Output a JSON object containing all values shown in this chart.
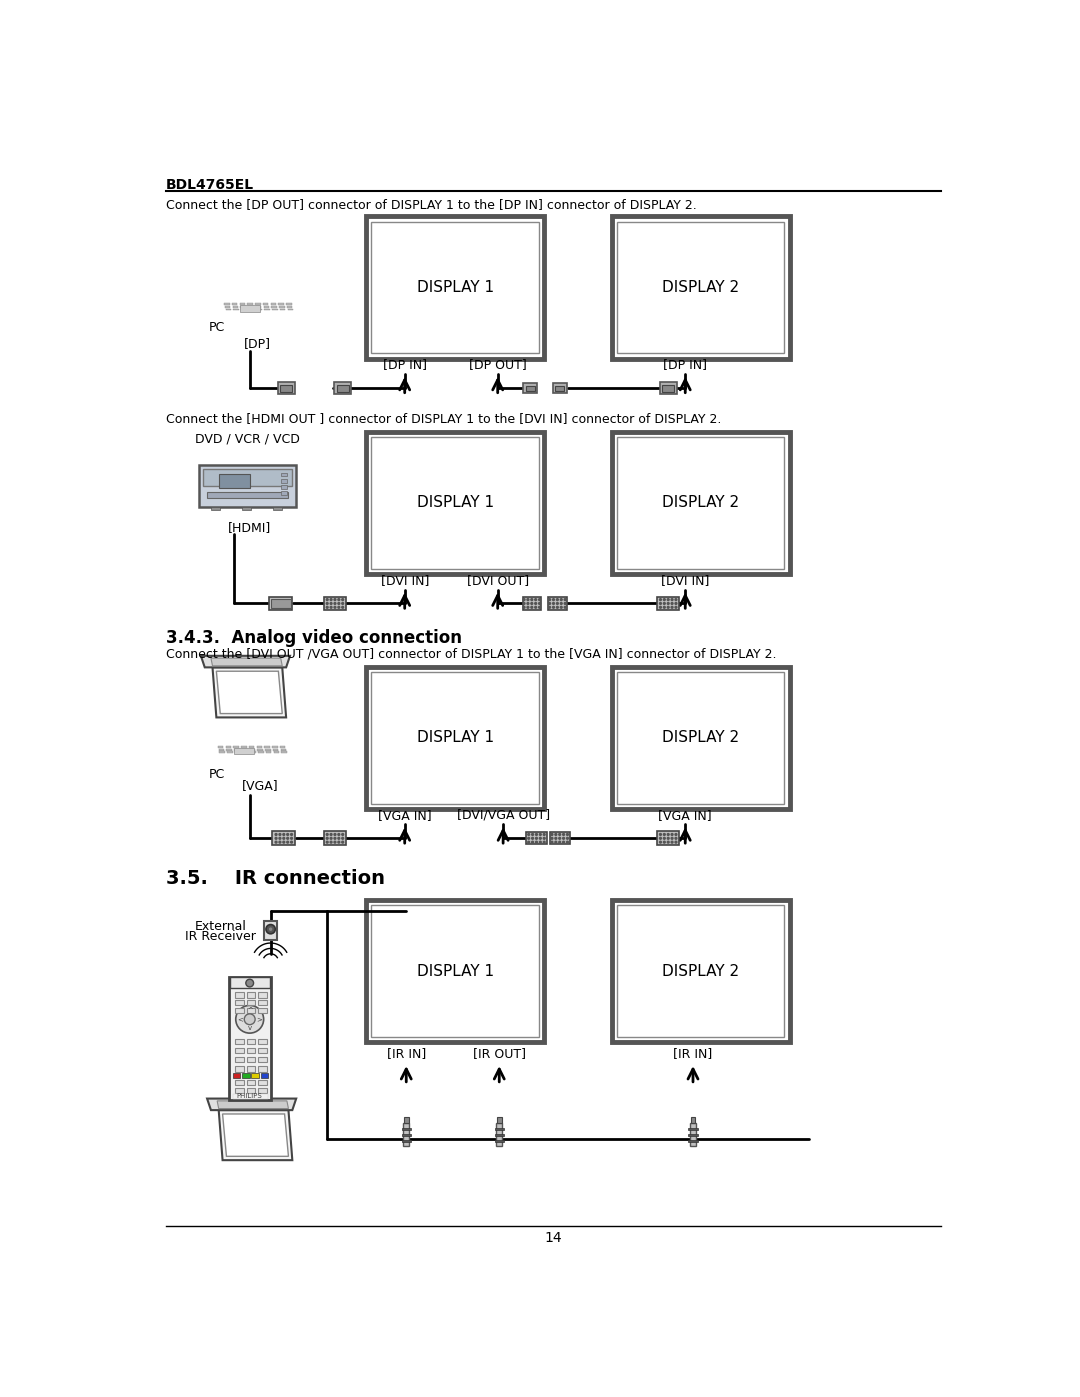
{
  "bg_color": "#ffffff",
  "text_color": "#000000",
  "page_title": "BDL4765EL",
  "page_number": "14",
  "section_343_title": "3.4.3.  Analog video connection",
  "section_35_title": "3.5.    IR connection",
  "dp_caption": "Connect the [DP OUT] connector of DISPLAY 1 to the [DP IN] connector of DISPLAY 2.",
  "hdmi_caption": "Connect the [HDMI OUT ] connector of DISPLAY 1 to the [DVI IN] connector of DISPLAY 2.",
  "vga_caption": "Connect the [DVI OUT /VGA OUT] connector of DISPLAY 1 to the [VGA IN] connector of DISPLAY 2.",
  "line_color": "#000000",
  "box_color": "#ffffff",
  "box_edge": "#000000",
  "arrow_color": "#000000"
}
